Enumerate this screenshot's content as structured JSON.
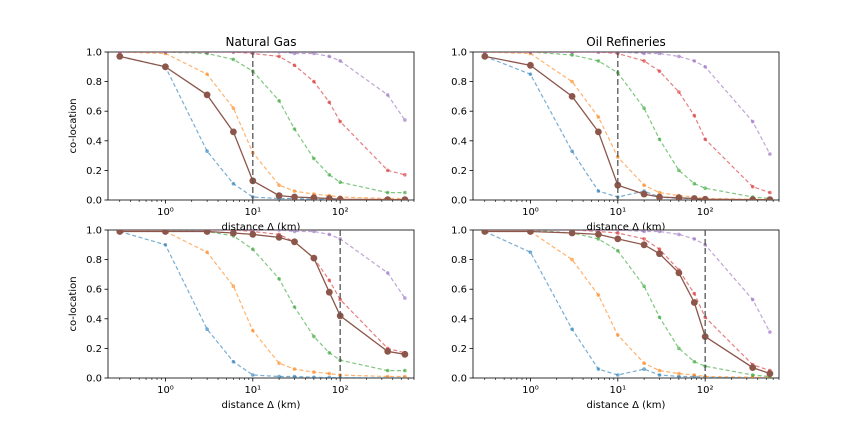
{
  "chart_data": [
    {
      "type": "line",
      "title": "Natural Gas",
      "xlabel": "distance Δ (km)",
      "ylabel": "co-location",
      "xscale": "log",
      "xlim": [
        0.22,
        700
      ],
      "ylim": [
        0,
        1.0
      ],
      "xticks": [
        {
          "value": 1,
          "label": "10⁰"
        },
        {
          "value": 10,
          "label": "10¹"
        },
        {
          "value": 100,
          "label": "10²"
        }
      ],
      "yticks": [
        "0.0",
        "0.2",
        "0.4",
        "0.6",
        "0.8",
        "1.0"
      ],
      "vline": 10,
      "x": [
        0.3,
        1,
        3,
        6,
        10,
        20,
        30,
        50,
        75,
        100,
        350,
        550
      ],
      "series": [
        {
          "color": "#1f77b4",
          "style": "dashed",
          "values": [
            0.97,
            0.9,
            0.33,
            0.11,
            0.02,
            0.01,
            0.01,
            0.005,
            0.003,
            0.002,
            0.001,
            0.001
          ]
        },
        {
          "color": "#ff7f0e",
          "style": "dashed",
          "values": [
            1.0,
            0.99,
            0.85,
            0.62,
            0.32,
            0.1,
            0.06,
            0.04,
            0.03,
            0.02,
            0.01,
            0.01
          ]
        },
        {
          "color": "#2ca02c",
          "style": "dashed",
          "values": [
            1.0,
            1.0,
            0.99,
            0.95,
            0.87,
            0.67,
            0.48,
            0.28,
            0.17,
            0.12,
            0.05,
            0.05
          ]
        },
        {
          "color": "#d62728",
          "style": "dashed",
          "values": [
            1.0,
            1.0,
            1.0,
            1.0,
            0.99,
            0.97,
            0.91,
            0.8,
            0.66,
            0.53,
            0.2,
            0.17
          ]
        },
        {
          "color": "#9467bd",
          "style": "dashed",
          "values": [
            1.0,
            1.0,
            1.0,
            1.0,
            1.0,
            1.0,
            0.99,
            0.99,
            0.97,
            0.94,
            0.71,
            0.54
          ]
        },
        {
          "color": "#8c564b",
          "style": "solid",
          "values": [
            0.97,
            0.9,
            0.71,
            0.46,
            0.13,
            0.03,
            0.02,
            0.015,
            0.01,
            0.005,
            0.003,
            0.003
          ]
        }
      ]
    },
    {
      "type": "line",
      "title": "Oil Refineries",
      "xlabel": "distance Δ (km)",
      "ylabel": "",
      "xscale": "log",
      "xlim": [
        0.22,
        700
      ],
      "ylim": [
        0,
        1.0
      ],
      "xticks": [
        {
          "value": 1,
          "label": "10⁰"
        },
        {
          "value": 10,
          "label": "10¹"
        },
        {
          "value": 100,
          "label": "10²"
        }
      ],
      "yticks": [
        "0.0",
        "0.2",
        "0.4",
        "0.6",
        "0.8",
        "1.0"
      ],
      "vline": 10,
      "x": [
        0.3,
        1,
        3,
        6,
        10,
        20,
        30,
        50,
        75,
        100,
        350,
        550
      ],
      "series": [
        {
          "color": "#1f77b4",
          "style": "dashed",
          "values": [
            0.97,
            0.85,
            0.33,
            0.06,
            0.02,
            0.06,
            0.02,
            0.01,
            0.01,
            0.005,
            0.001,
            0.001
          ]
        },
        {
          "color": "#ff7f0e",
          "style": "dashed",
          "values": [
            1.0,
            0.99,
            0.8,
            0.56,
            0.29,
            0.1,
            0.05,
            0.03,
            0.02,
            0.01,
            0.005,
            0.005
          ]
        },
        {
          "color": "#2ca02c",
          "style": "dashed",
          "values": [
            1.0,
            1.0,
            0.98,
            0.94,
            0.86,
            0.62,
            0.41,
            0.2,
            0.11,
            0.08,
            0.02,
            0.01
          ]
        },
        {
          "color": "#d62728",
          "style": "dashed",
          "values": [
            1.0,
            1.0,
            1.0,
            1.0,
            0.99,
            0.94,
            0.87,
            0.73,
            0.57,
            0.41,
            0.09,
            0.05
          ]
        },
        {
          "color": "#9467bd",
          "style": "dashed",
          "values": [
            1.0,
            1.0,
            1.0,
            1.0,
            1.0,
            0.99,
            0.99,
            0.97,
            0.94,
            0.9,
            0.53,
            0.31
          ]
        },
        {
          "color": "#8c564b",
          "style": "solid",
          "values": [
            0.97,
            0.91,
            0.7,
            0.46,
            0.1,
            0.04,
            0.02,
            0.015,
            0.01,
            0.005,
            0.002,
            0.002
          ]
        }
      ]
    },
    {
      "type": "line",
      "title": "",
      "xlabel": "distance Δ (km)",
      "ylabel": "co-location",
      "xscale": "log",
      "xlim": [
        0.22,
        700
      ],
      "ylim": [
        0,
        1.0
      ],
      "xticks": [
        {
          "value": 1,
          "label": "10⁰"
        },
        {
          "value": 10,
          "label": "10¹"
        },
        {
          "value": 100,
          "label": "10²"
        }
      ],
      "yticks": [
        "0.0",
        "0.2",
        "0.4",
        "0.6",
        "0.8",
        "1.0"
      ],
      "vline": 100,
      "x": [
        0.3,
        1,
        3,
        6,
        10,
        20,
        30,
        50,
        75,
        100,
        350,
        550
      ],
      "series": [
        {
          "color": "#1f77b4",
          "style": "dashed",
          "values": [
            0.99,
            0.9,
            0.33,
            0.11,
            0.02,
            0.01,
            0.01,
            0.005,
            0.003,
            0.002,
            0.001,
            0.001
          ]
        },
        {
          "color": "#ff7f0e",
          "style": "dashed",
          "values": [
            1.0,
            0.99,
            0.85,
            0.62,
            0.32,
            0.1,
            0.06,
            0.04,
            0.03,
            0.02,
            0.01,
            0.01
          ]
        },
        {
          "color": "#2ca02c",
          "style": "dashed",
          "values": [
            1.0,
            1.0,
            0.99,
            0.96,
            0.87,
            0.67,
            0.48,
            0.28,
            0.17,
            0.12,
            0.05,
            0.05
          ]
        },
        {
          "color": "#d62728",
          "style": "dashed",
          "values": [
            1.0,
            1.0,
            1.0,
            1.0,
            0.99,
            0.97,
            0.92,
            0.81,
            0.66,
            0.53,
            0.2,
            0.17
          ]
        },
        {
          "color": "#9467bd",
          "style": "dashed",
          "values": [
            1.0,
            1.0,
            1.0,
            1.0,
            1.0,
            1.0,
            0.99,
            0.99,
            0.97,
            0.94,
            0.71,
            0.54
          ]
        },
        {
          "color": "#8c564b",
          "style": "solid",
          "values": [
            0.99,
            0.99,
            0.99,
            0.98,
            0.97,
            0.95,
            0.92,
            0.81,
            0.58,
            0.42,
            0.18,
            0.16
          ]
        }
      ]
    },
    {
      "type": "line",
      "title": "",
      "xlabel": "distance Δ (km)",
      "ylabel": "",
      "xscale": "log",
      "xlim": [
        0.22,
        700
      ],
      "ylim": [
        0,
        1.0
      ],
      "xticks": [
        {
          "value": 1,
          "label": "10⁰"
        },
        {
          "value": 10,
          "label": "10¹"
        },
        {
          "value": 100,
          "label": "10²"
        }
      ],
      "yticks": [
        "0.0",
        "0.2",
        "0.4",
        "0.6",
        "0.8",
        "1.0"
      ],
      "vline": 100,
      "x": [
        0.3,
        1,
        3,
        6,
        10,
        20,
        30,
        50,
        75,
        100,
        350,
        550
      ],
      "series": [
        {
          "color": "#1f77b4",
          "style": "dashed",
          "values": [
            0.99,
            0.85,
            0.33,
            0.06,
            0.02,
            0.06,
            0.02,
            0.01,
            0.01,
            0.005,
            0.001,
            0.001
          ]
        },
        {
          "color": "#ff7f0e",
          "style": "dashed",
          "values": [
            1.0,
            0.99,
            0.8,
            0.56,
            0.29,
            0.1,
            0.05,
            0.03,
            0.02,
            0.01,
            0.005,
            0.005
          ]
        },
        {
          "color": "#2ca02c",
          "style": "dashed",
          "values": [
            1.0,
            1.0,
            0.98,
            0.94,
            0.86,
            0.62,
            0.41,
            0.2,
            0.11,
            0.08,
            0.02,
            0.01
          ]
        },
        {
          "color": "#d62728",
          "style": "dashed",
          "values": [
            1.0,
            1.0,
            1.0,
            0.99,
            0.98,
            0.94,
            0.87,
            0.73,
            0.57,
            0.41,
            0.09,
            0.05
          ]
        },
        {
          "color": "#9467bd",
          "style": "dashed",
          "values": [
            1.0,
            1.0,
            1.0,
            1.0,
            1.0,
            0.99,
            0.99,
            0.97,
            0.94,
            0.9,
            0.53,
            0.31
          ]
        },
        {
          "color": "#8c564b",
          "style": "solid",
          "values": [
            0.99,
            0.99,
            0.98,
            0.97,
            0.94,
            0.9,
            0.84,
            0.71,
            0.51,
            0.28,
            0.07,
            0.03
          ]
        }
      ]
    }
  ]
}
